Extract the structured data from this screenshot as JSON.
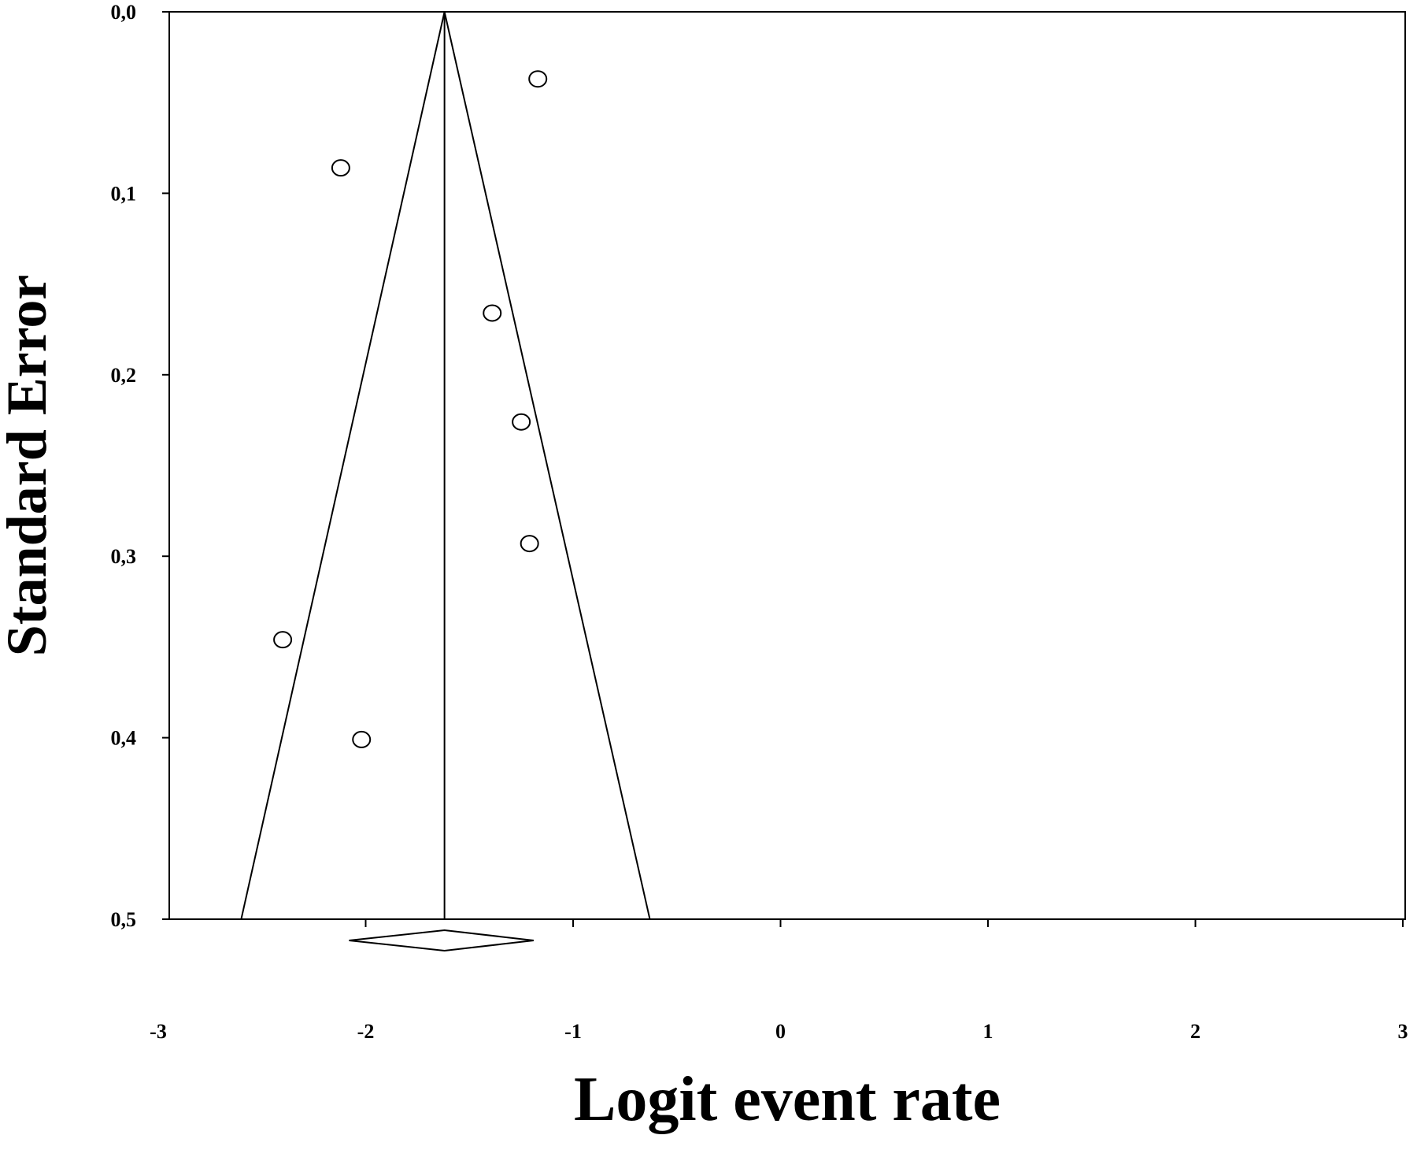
{
  "chart_data": {
    "type": "scatter",
    "subtype": "funnel plot",
    "title": "",
    "xlabel": "Logit event rate",
    "ylabel": "Standard Error",
    "xlim": [
      -3,
      3
    ],
    "ylim": [
      0.0,
      0.5
    ],
    "y_axis_inverted": true,
    "x_ticks": [
      "-3",
      "-2",
      "-1",
      "0",
      "1",
      "2",
      "3"
    ],
    "y_ticks": [
      "0,0",
      "0,1",
      "0,2",
      "0,3",
      "0,4",
      "0,5"
    ],
    "pooled_estimate": -1.62,
    "funnel_bounds_at_max_se": [
      -2.6,
      -0.63
    ],
    "summary_diamond": {
      "lower": -2.08,
      "estimate": -1.62,
      "upper": -1.19
    },
    "points": [
      {
        "x": -1.17,
        "y": 0.037
      },
      {
        "x": -2.12,
        "y": 0.086
      },
      {
        "x": -1.39,
        "y": 0.166
      },
      {
        "x": -1.25,
        "y": 0.226
      },
      {
        "x": -1.21,
        "y": 0.293
      },
      {
        "x": -2.4,
        "y": 0.346
      },
      {
        "x": -2.02,
        "y": 0.401
      }
    ],
    "marker": "open-circle",
    "grid": false,
    "legend": "none"
  }
}
